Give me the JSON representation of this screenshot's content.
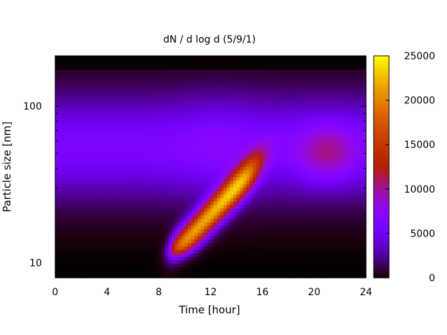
{
  "chart_data": {
    "type": "heatmap",
    "title": "dN / d log d (5/9/1)",
    "xlabel": "Time [hour]",
    "ylabel": "Particle size [nm]",
    "x_range": [
      0,
      24
    ],
    "x_ticks": [
      0,
      4,
      8,
      12,
      16,
      20,
      24
    ],
    "y_scale": "log",
    "y_range": [
      8,
      210
    ],
    "y_ticks": [
      10,
      100
    ],
    "colorbar": {
      "range": [
        0,
        25000
      ],
      "ticks": [
        0,
        5000,
        10000,
        15000,
        20000,
        25000
      ],
      "palette": "gnuplot pm3d default (black-purple-red-orange-yellow)"
    },
    "grid": false,
    "legend": "none",
    "features": [
      {
        "description": "persistent accumulation mode",
        "time_range": [
          0,
          24
        ],
        "peak_diameter_nm": 55,
        "peak_value": 7000
      },
      {
        "description": "new particle formation / growth banana",
        "start_time": 8.5,
        "start_diameter_nm": 10,
        "end_time": 14,
        "end_diameter_nm": 30,
        "peak_value": 21000
      },
      {
        "description": "evening mode",
        "time_range": [
          18,
          24
        ],
        "peak_diameter_nm": 50,
        "peak_value": 10000
      }
    ]
  }
}
